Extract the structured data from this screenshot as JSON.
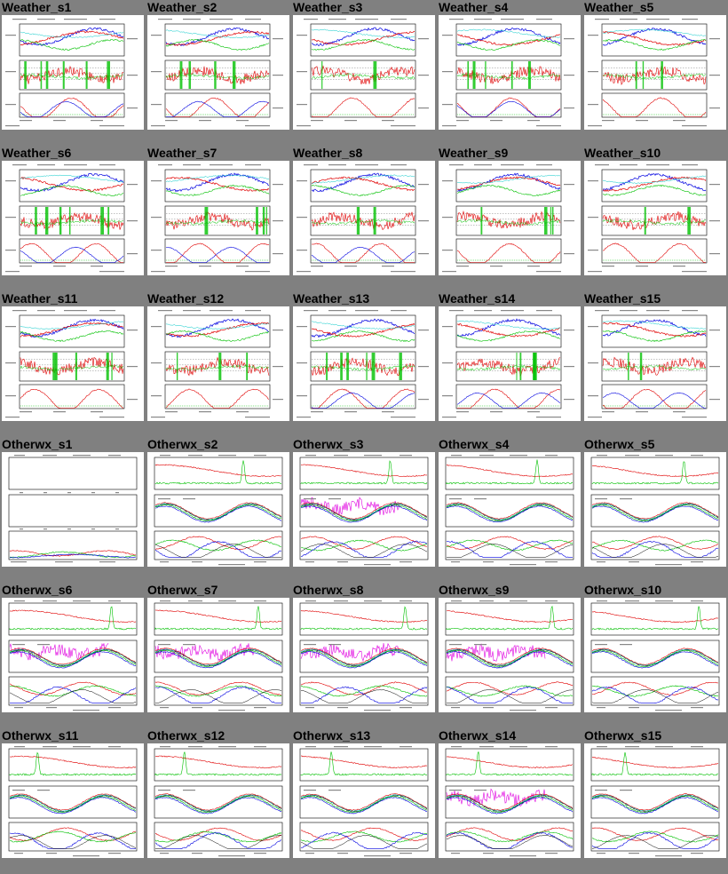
{
  "page": {
    "background": "#808080",
    "thumbnail_background": "#ffffff"
  },
  "colors": {
    "red": "#e00000",
    "green": "#00c000",
    "blue": "#0000e0",
    "cyan": "#00c8c8",
    "magenta": "#e000e0",
    "black": "#000000",
    "gray": "#808080"
  },
  "rows": [
    {
      "group": "weather",
      "items": [
        {
          "title": "Weather_s1"
        },
        {
          "title": "Weather_s2"
        },
        {
          "title": "Weather_s3"
        },
        {
          "title": "Weather_s4"
        },
        {
          "title": "Weather_s5"
        }
      ]
    },
    {
      "group": "weather",
      "items": [
        {
          "title": "Weather_s6"
        },
        {
          "title": "Weather_s7"
        },
        {
          "title": "Weather_s8"
        },
        {
          "title": "Weather_s9"
        },
        {
          "title": "Weather_s10"
        }
      ]
    },
    {
      "group": "weather",
      "items": [
        {
          "title": "Weather_s11"
        },
        {
          "title": "Weather_s12"
        },
        {
          "title": "Weather_s13"
        },
        {
          "title": "Weather_s14"
        },
        {
          "title": "Weather_s15"
        }
      ]
    },
    {
      "group": "otherwx",
      "items": [
        {
          "title": "Otherwx_s1",
          "empty": true
        },
        {
          "title": "Otherwx_s2"
        },
        {
          "title": "Otherwx_s3",
          "magenta": true
        },
        {
          "title": "Otherwx_s4"
        },
        {
          "title": "Otherwx_s5"
        }
      ]
    },
    {
      "group": "otherwx",
      "items": [
        {
          "title": "Otherwx_s6",
          "magenta": true
        },
        {
          "title": "Otherwx_s7",
          "magenta": true
        },
        {
          "title": "Otherwx_s8",
          "magenta": true
        },
        {
          "title": "Otherwx_s9",
          "magenta": true
        },
        {
          "title": "Otherwx_s10"
        }
      ]
    },
    {
      "group": "otherwx",
      "items": [
        {
          "title": "Otherwx_s11"
        },
        {
          "title": "Otherwx_s12"
        },
        {
          "title": "Otherwx_s13"
        },
        {
          "title": "Otherwx_s14",
          "magenta": true
        },
        {
          "title": "Otherwx_s15"
        }
      ]
    }
  ]
}
